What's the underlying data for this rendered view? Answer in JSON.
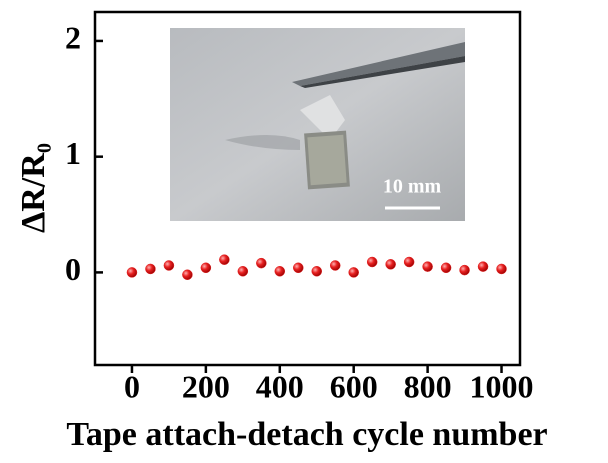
{
  "chart_data": {
    "type": "scatter",
    "xlabel": "Tape attach-detach cycle number",
    "ylabel": "ΔR/R₀",
    "inset_label": "10 mm",
    "x": [
      0,
      50,
      100,
      150,
      200,
      250,
      300,
      350,
      400,
      450,
      500,
      550,
      600,
      650,
      700,
      750,
      800,
      850,
      900,
      950,
      1000
    ],
    "values": [
      0.0,
      0.03,
      0.06,
      -0.02,
      0.04,
      0.11,
      0.01,
      0.08,
      0.01,
      0.04,
      0.01,
      0.06,
      0.0,
      0.09,
      0.07,
      0.09,
      0.05,
      0.04,
      0.02,
      0.05,
      0.03
    ],
    "color": "#e02020",
    "xlim": [
      -100,
      1050
    ],
    "ylim": [
      -0.8,
      2.25
    ],
    "xticks": [
      0,
      200,
      400,
      600,
      800,
      1000
    ],
    "yticks": [
      0,
      1,
      2
    ]
  }
}
